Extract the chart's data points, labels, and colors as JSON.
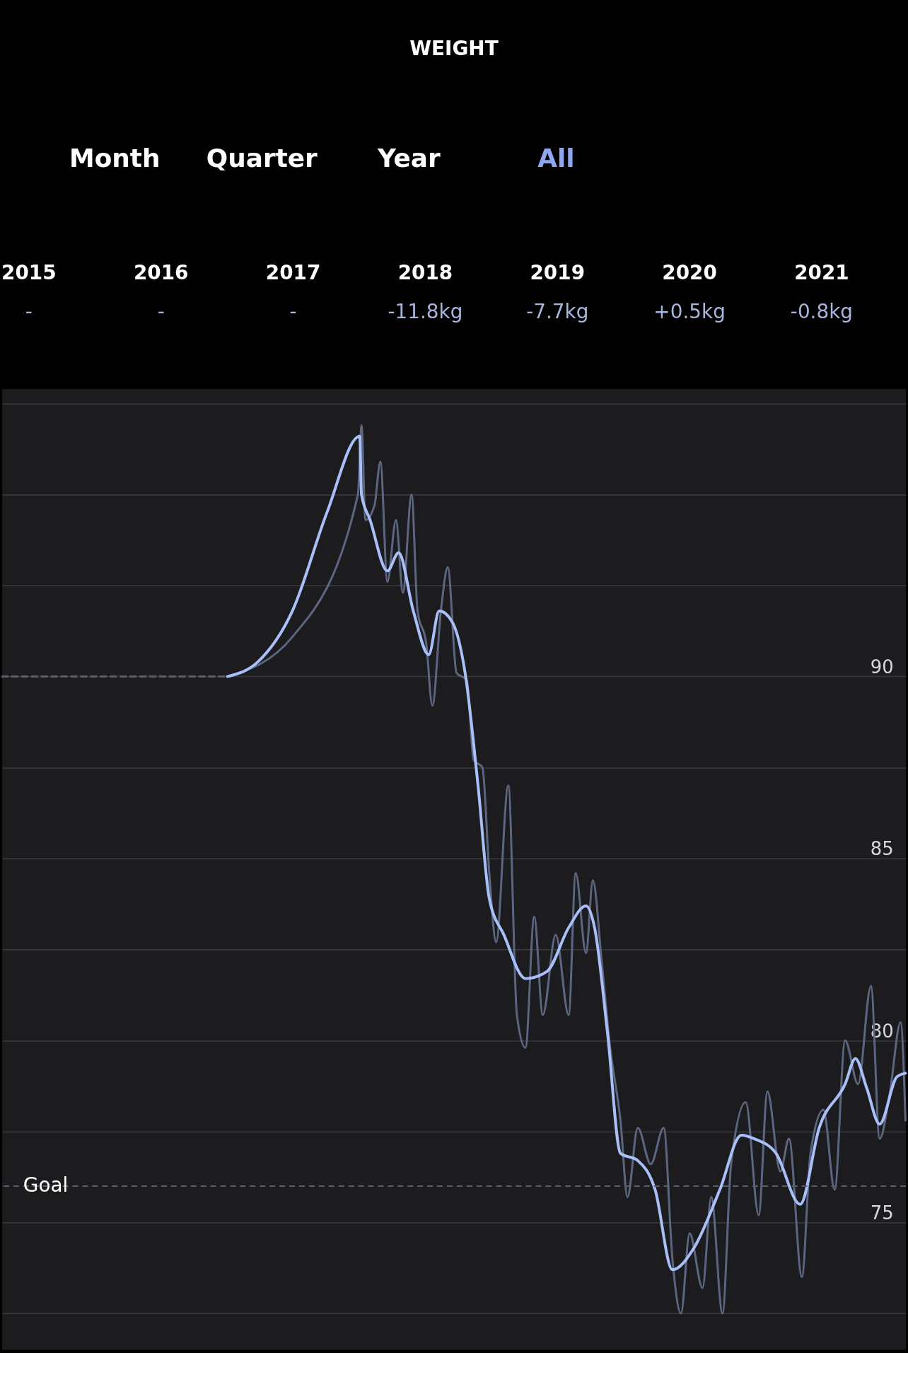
{
  "chart_data": {
    "type": "line",
    "title": "WEIGHT",
    "annotations": [
      "Month",
      "Quarter",
      "Year",
      "All",
      "-",
      "-",
      "-",
      "-11.8kg",
      "-7.7kg",
      "+0.5kg",
      "-0.8kg"
    ],
    "xlim": [
      2015.3,
      2022.14
    ],
    "ylim": [
      71.5,
      97.9
    ],
    "xticks": [
      {
        "value": 2015.5,
        "label": "2015"
      },
      {
        "value": 2016.5,
        "label": "2016"
      },
      {
        "value": 2017.5,
        "label": "2017"
      },
      {
        "value": 2018.5,
        "label": "2018"
      },
      {
        "value": 2019.5,
        "label": "2019"
      },
      {
        "value": 2020.5,
        "label": "2020"
      },
      {
        "value": 2021.5,
        "label": "2021"
      }
    ],
    "yticks": [
      {
        "value": 72.5,
        "label": null
      },
      75,
      {
        "value": 77.5,
        "label": null
      },
      80,
      {
        "value": 82.5,
        "label": null
      },
      85,
      {
        "value": 87.5,
        "label": null
      },
      90,
      {
        "value": 92.5,
        "label": null
      },
      {
        "value": 95,
        "label": null
      },
      {
        "value": 97.5,
        "label": null
      }
    ],
    "grid": "y",
    "ref_lines": [
      {
        "axis": "y",
        "value": 76,
        "label": "Goal",
        "line_style": "dashed",
        "color": "#5a5e6a"
      }
    ],
    "series": [
      {
        "line_style": "dashed",
        "color": "#5a5e6a",
        "x": [
          2015.3,
          2017.007
        ],
        "values": [
          90,
          90
        ]
      },
      {
        "color": "#5d6680",
        "x": [
          2017.007,
          2017.5,
          2017.993,
          2018.02,
          2018.05,
          2018.118,
          2018.163,
          2018.216,
          2018.281,
          2018.333,
          2018.399,
          2018.444,
          2018.51,
          2018.556,
          2018.621,
          2018.673,
          2018.739,
          2018.817,
          2018.869,
          2018.935,
          2018.987,
          2019.039,
          2019.131,
          2019.196,
          2019.261,
          2019.327,
          2019.392,
          2019.49,
          2019.588,
          2019.641,
          2019.719,
          2019.771,
          2019.837,
          2019.902,
          2019.98,
          2020.033,
          2020.111,
          2020.209,
          2020.307,
          2020.373,
          2020.438,
          2020.503,
          2020.601,
          2020.667,
          2020.752,
          2020.817,
          2020.928,
          2021.026,
          2021.092,
          2021.19,
          2021.255,
          2021.353,
          2021.418,
          2021.516,
          2021.601,
          2021.68,
          2021.778,
          2021.876,
          2021.941,
          2022.02,
          2022.1,
          2022.137
        ],
        "values": [
          90.0,
          91.1,
          95.0,
          96.9,
          94.3,
          94.7,
          95.9,
          92.6,
          94.3,
          92.3,
          95.0,
          91.8,
          90.9,
          89.2,
          91.8,
          93.0,
          90.1,
          89.9,
          87.7,
          87.5,
          84.6,
          82.7,
          87.0,
          80.7,
          79.8,
          83.4,
          80.7,
          82.9,
          80.7,
          84.6,
          82.4,
          84.4,
          82.2,
          79.8,
          77.8,
          75.7,
          77.6,
          76.6,
          77.6,
          74.0,
          72.5,
          74.7,
          73.2,
          75.7,
          72.5,
          76.6,
          78.3,
          75.2,
          78.6,
          76.4,
          77.3,
          73.5,
          76.9,
          78.1,
          75.9,
          80.0,
          78.8,
          81.5,
          77.3,
          78.6,
          80.5,
          77.8
        ]
      },
      {
        "color": "#a9bff7",
        "x": [
          2017.007,
          2017.235,
          2017.497,
          2017.758,
          2018.007,
          2018.02,
          2018.085,
          2018.216,
          2018.301,
          2018.412,
          2018.529,
          2018.608,
          2018.706,
          2018.804,
          2018.902,
          2018.987,
          2019.098,
          2019.261,
          2019.425,
          2019.588,
          2019.719,
          2019.784,
          2019.882,
          2019.98,
          2020.111,
          2020.242,
          2020.373,
          2020.536,
          2020.732,
          2020.895,
          2020.993,
          2021.157,
          2021.34,
          2021.484,
          2021.68,
          2021.758,
          2021.843,
          2021.941,
          2022.072,
          2022.137
        ],
        "values": [
          90.0,
          90.4,
          91.8,
          94.5,
          96.6,
          95.0,
          94.3,
          92.9,
          93.4,
          91.8,
          90.6,
          91.8,
          91.5,
          90.1,
          87.0,
          83.9,
          82.9,
          81.7,
          81.9,
          83.1,
          83.7,
          83.1,
          80.2,
          76.9,
          76.7,
          75.9,
          73.7,
          74.3,
          75.9,
          77.4,
          77.3,
          76.9,
          75.5,
          77.6,
          78.8,
          79.5,
          78.7,
          77.7,
          79.0,
          79.1
        ]
      }
    ]
  }
}
